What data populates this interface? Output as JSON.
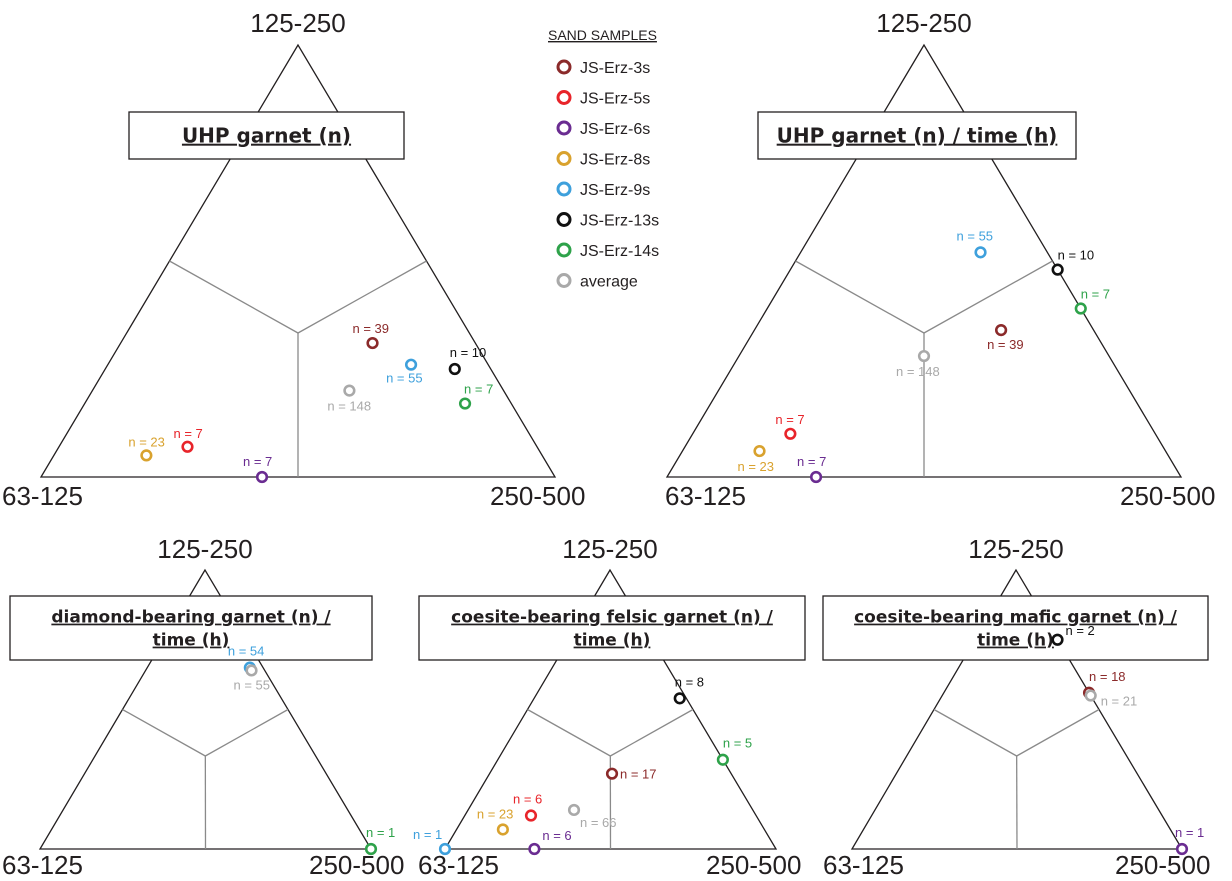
{
  "legend": {
    "title": "SAND SAMPLES",
    "items": [
      {
        "id": "3s",
        "label": "JS-Erz-3s",
        "color": "#8b2a2a"
      },
      {
        "id": "5s",
        "label": "JS-Erz-5s",
        "color": "#e8242a"
      },
      {
        "id": "6s",
        "label": "JS-Erz-6s",
        "color": "#6a2c91"
      },
      {
        "id": "8s",
        "label": "JS-Erz-8s",
        "color": "#d9a22e"
      },
      {
        "id": "9s",
        "label": "JS-Erz-9s",
        "color": "#3ea0dc"
      },
      {
        "id": "13s",
        "label": "JS-Erz-13s",
        "color": "#111111"
      },
      {
        "id": "14s",
        "label": "JS-Erz-14s",
        "color": "#2ea24a"
      },
      {
        "id": "avg",
        "label": "average",
        "color": "#a9a9a9"
      }
    ]
  },
  "chart_data": [
    {
      "type": "scatter",
      "subtype": "ternary",
      "title_lines": [
        "UHP garnet (n)"
      ],
      "corners": {
        "top": "125-250",
        "left": "63-125",
        "right": "250-500"
      },
      "points": [
        {
          "sample": "3s",
          "label": "n = 39",
          "a": 0.31,
          "b": 0.2,
          "c": 0.49
        },
        {
          "sample": "9s",
          "label": "n = 55",
          "a": 0.26,
          "b": 0.15,
          "c": 0.59
        },
        {
          "sample": "13s",
          "label": "n = 10",
          "a": 0.25,
          "b": 0.07,
          "c": 0.68
        },
        {
          "sample": "14s",
          "label": "n = 7",
          "a": 0.17,
          "b": 0.09,
          "c": 0.74
        },
        {
          "sample": "avg",
          "label": "n = 148",
          "a": 0.2,
          "b": 0.3,
          "c": 0.5
        },
        {
          "sample": "5s",
          "label": "n = 7",
          "a": 0.07,
          "b": 0.68,
          "c": 0.25
        },
        {
          "sample": "8s",
          "label": "n = 23",
          "a": 0.05,
          "b": 0.77,
          "c": 0.18
        },
        {
          "sample": "6s",
          "label": "n = 7",
          "a": 0.0,
          "b": 0.57,
          "c": 0.43
        }
      ]
    },
    {
      "type": "scatter",
      "subtype": "ternary",
      "title_lines": [
        "UHP garnet (n) / time (h)"
      ],
      "corners": {
        "top": "125-250",
        "left": "63-125",
        "right": "250-500"
      },
      "points": [
        {
          "sample": "9s",
          "label": "n = 55",
          "a": 0.52,
          "b": 0.13,
          "c": 0.35
        },
        {
          "sample": "13s",
          "label": "n = 10",
          "a": 0.48,
          "b": 0.0,
          "c": 0.52
        },
        {
          "sample": "14s",
          "label": "n = 7",
          "a": 0.39,
          "b": 0.0,
          "c": 0.61
        },
        {
          "sample": "3s",
          "label": "n = 39",
          "a": 0.34,
          "b": 0.18,
          "c": 0.48
        },
        {
          "sample": "avg",
          "label": "n = 148",
          "a": 0.28,
          "b": 0.36,
          "c": 0.36
        },
        {
          "sample": "5s",
          "label": "n = 7",
          "a": 0.1,
          "b": 0.71,
          "c": 0.19
        },
        {
          "sample": "8s",
          "label": "n = 23",
          "a": 0.06,
          "b": 0.79,
          "c": 0.15
        },
        {
          "sample": "6s",
          "label": "n = 7",
          "a": 0.0,
          "b": 0.71,
          "c": 0.29
        }
      ]
    },
    {
      "type": "scatter",
      "subtype": "ternary",
      "title_lines": [
        "diamond-bearing garnet (n) /",
        "time (h)"
      ],
      "corners": {
        "top": "125-250",
        "left": "63-125",
        "right": "250-500"
      },
      "points": [
        {
          "sample": "9s",
          "label": "n = 54",
          "a": 0.65,
          "b": 0.04,
          "c": 0.31
        },
        {
          "sample": "avg",
          "label": "n = 55",
          "a": 0.64,
          "b": 0.04,
          "c": 0.32
        },
        {
          "sample": "14s",
          "label": "n = 1",
          "a": 0.0,
          "b": 0.0,
          "c": 1.0
        }
      ]
    },
    {
      "type": "scatter",
      "subtype": "ternary",
      "title_lines": [
        "coesite-bearing felsic garnet (n) /",
        "time (h)"
      ],
      "corners": {
        "top": "125-250",
        "left": "63-125",
        "right": "250-500"
      },
      "points": [
        {
          "sample": "13s",
          "label": "n = 8",
          "a": 0.54,
          "b": 0.02,
          "c": 0.44
        },
        {
          "sample": "14s",
          "label": "n = 5",
          "a": 0.32,
          "b": 0.0,
          "c": 0.68
        },
        {
          "sample": "3s",
          "label": "n = 17",
          "a": 0.27,
          "b": 0.36,
          "c": 0.37
        },
        {
          "sample": "avg",
          "label": "n = 66",
          "a": 0.14,
          "b": 0.54,
          "c": 0.32
        },
        {
          "sample": "5s",
          "label": "n = 6",
          "a": 0.12,
          "b": 0.68,
          "c": 0.2
        },
        {
          "sample": "8s",
          "label": "n = 23",
          "a": 0.07,
          "b": 0.79,
          "c": 0.14
        },
        {
          "sample": "6s",
          "label": "n = 6",
          "a": 0.0,
          "b": 0.73,
          "c": 0.27
        },
        {
          "sample": "9s",
          "label": "n = 1",
          "a": 0.0,
          "b": 1.0,
          "c": 0.0
        }
      ]
    },
    {
      "type": "scatter",
      "subtype": "ternary",
      "title_lines": [
        "coesite-bearing mafic garnet (n) /",
        "time (h)"
      ],
      "corners": {
        "top": "125-250",
        "left": "63-125",
        "right": "250-500"
      },
      "points": [
        {
          "sample": "13s",
          "label": "n = 2",
          "a": 0.75,
          "b": 0.0,
          "c": 0.25
        },
        {
          "sample": "3s",
          "label": "n = 18",
          "a": 0.56,
          "b": 0.0,
          "c": 0.44
        },
        {
          "sample": "avg",
          "label": "n = 21",
          "a": 0.55,
          "b": 0.0,
          "c": 0.45
        },
        {
          "sample": "6s",
          "label": "n = 1",
          "a": 0.0,
          "b": 0.0,
          "c": 1.0
        }
      ]
    }
  ]
}
